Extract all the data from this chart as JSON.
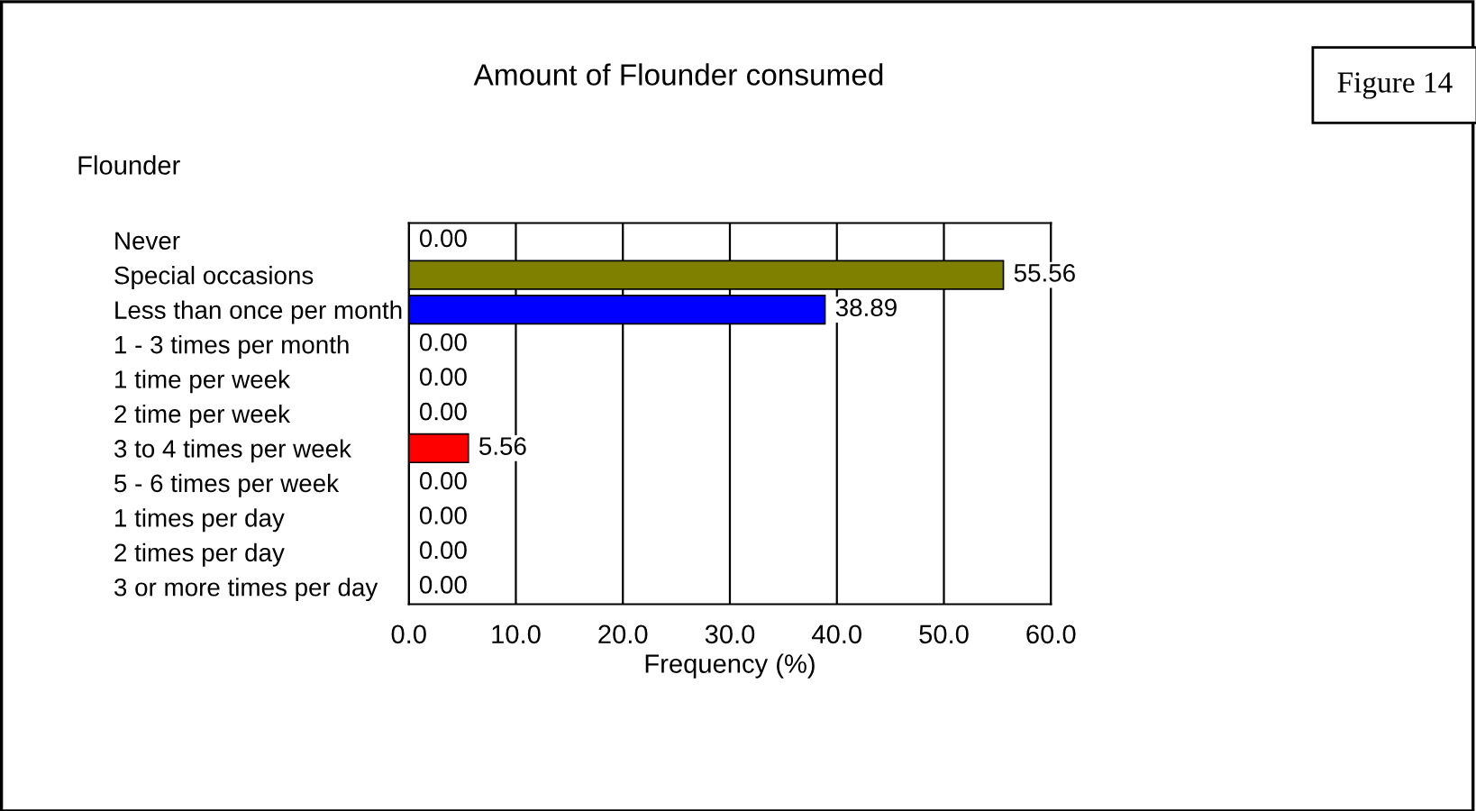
{
  "chart_data": {
    "type": "bar",
    "orientation": "horizontal",
    "title": "Amount of Flounder consumed",
    "ylabel": "Flounder",
    "xlabel": "Frequency (%)",
    "categories": [
      "Never",
      "Special occasions",
      "Less than once per month",
      "1 - 3 times per month",
      "1 time per week",
      "2 time per week",
      "3 to 4 times per week",
      "5 - 6 times per week",
      "1 times per day",
      "2 times per day",
      "3 or more times per day"
    ],
    "values": [
      0,
      55.56,
      38.89,
      0,
      0,
      0,
      5.56,
      0,
      0,
      0,
      0
    ],
    "colors": [
      "#808000",
      "#808000",
      "#0000ff",
      "#808000",
      "#808000",
      "#808000",
      "#ff0000",
      "#808000",
      "#808000",
      "#808000",
      "#808000"
    ],
    "value_labels": [
      "0.00",
      "55.56",
      "38.89",
      "0.00",
      "0.00",
      "0.00",
      "5.56",
      "0.00",
      "0.00",
      "0.00",
      "0.00"
    ],
    "xlim": [
      0,
      60
    ],
    "xticks": [
      {
        "value": 0,
        "label": "0.0"
      },
      {
        "value": 10,
        "label": "10.0"
      },
      {
        "value": 20,
        "label": "20.0"
      },
      {
        "value": 30,
        "label": "30.0"
      },
      {
        "value": 40,
        "label": "40.0"
      },
      {
        "value": 50,
        "label": "50.0"
      },
      {
        "value": 60,
        "label": "60.0"
      }
    ],
    "grid": "x",
    "annotations": [
      "Figure 14"
    ]
  }
}
